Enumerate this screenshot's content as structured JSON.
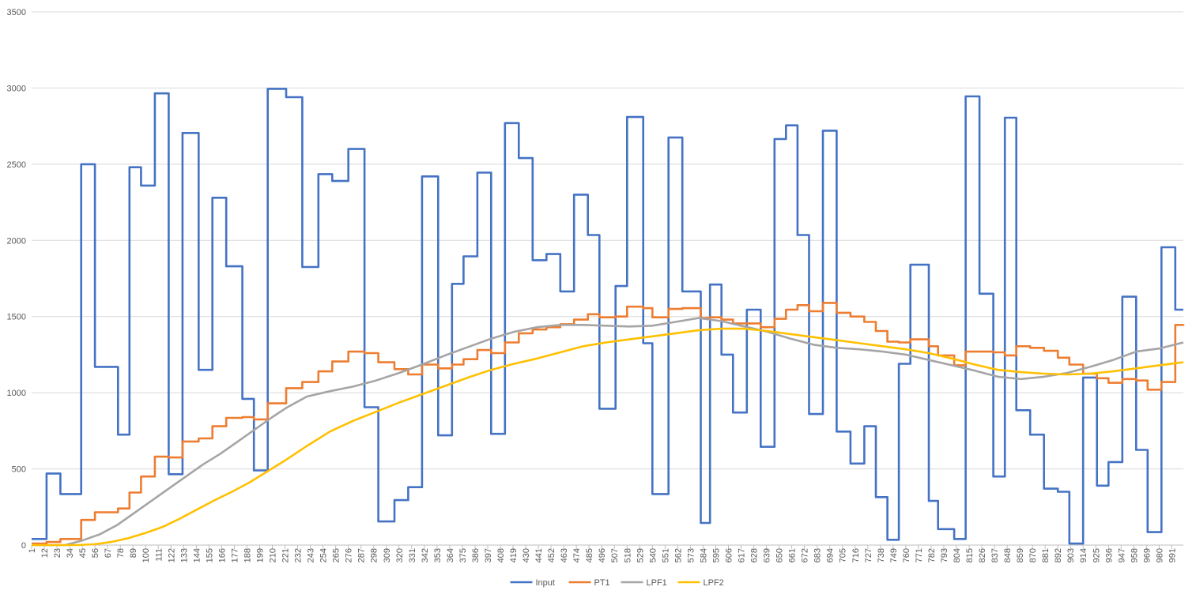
{
  "chart_data": {
    "type": "line",
    "title": "",
    "xlabel": "",
    "ylabel": "",
    "ylim": [
      0,
      3500
    ],
    "yticks": [
      0,
      500,
      1000,
      1500,
      2000,
      2500,
      3000,
      3500
    ],
    "xlim": [
      1,
      1001
    ],
    "xtick_labels": [
      "1",
      "12",
      "23",
      "34",
      "45",
      "56",
      "67",
      "78",
      "89",
      "100",
      "111",
      "122",
      "133",
      "144",
      "155",
      "166",
      "177",
      "188",
      "199",
      "210",
      "221",
      "232",
      "243",
      "254",
      "265",
      "276",
      "287",
      "298",
      "309",
      "320",
      "331",
      "342",
      "353",
      "364",
      "375",
      "386",
      "397",
      "408",
      "419",
      "430",
      "441",
      "452",
      "463",
      "474",
      "485",
      "496",
      "507",
      "518",
      "529",
      "540",
      "551",
      "562",
      "573",
      "584",
      "595",
      "606",
      "617",
      "628",
      "639",
      "650",
      "661",
      "672",
      "683",
      "694",
      "705",
      "716",
      "727",
      "738",
      "749",
      "760",
      "771",
      "782",
      "793",
      "804",
      "815",
      "826",
      "837",
      "848",
      "859",
      "870",
      "881",
      "892",
      "903",
      "914",
      "925",
      "936",
      "947",
      "958",
      "969",
      "980",
      "991"
    ],
    "grid": "horizontal",
    "legend_position": "bottom",
    "series": [
      {
        "name": "Input",
        "color": "#4472C4",
        "step": true,
        "x": [
          1,
          14,
          26,
          44,
          56,
          76,
          86,
          96,
          108,
          120,
          132,
          146,
          158,
          170,
          184,
          194,
          206,
          222,
          236,
          250,
          262,
          276,
          290,
          302,
          316,
          328,
          340,
          354,
          366,
          376,
          388,
          400,
          412,
          424,
          436,
          448,
          460,
          472,
          484,
          494,
          508,
          518,
          532,
          540,
          554,
          566,
          582,
          590,
          600,
          610,
          622,
          634,
          646,
          656,
          666,
          676,
          688,
          700,
          712,
          724,
          734,
          744,
          754,
          764,
          780,
          788,
          802,
          812,
          824,
          836,
          846,
          856,
          868,
          880,
          892,
          902,
          914,
          926,
          936,
          948,
          960,
          970,
          982,
          994,
          1001
        ],
        "values": [
          40,
          470,
          335,
          2500,
          1170,
          725,
          2480,
          2360,
          2965,
          465,
          2705,
          1150,
          2280,
          1830,
          960,
          490,
          2995,
          2940,
          1825,
          2435,
          2390,
          2600,
          905,
          155,
          295,
          380,
          2420,
          720,
          1715,
          1895,
          2445,
          730,
          2770,
          2540,
          1870,
          1910,
          1665,
          2300,
          2035,
          895,
          1700,
          2810,
          1325,
          335,
          2675,
          1665,
          145,
          1710,
          1250,
          870,
          1545,
          645,
          2665,
          2755,
          2035,
          860,
          2720,
          745,
          535,
          780,
          315,
          35,
          1190,
          1840,
          290,
          105,
          40,
          2945,
          1650,
          450,
          2805,
          885,
          725,
          370,
          350,
          10,
          1100,
          390,
          545,
          1630,
          625,
          85,
          1955,
          1545,
          1545
        ]
      },
      {
        "name": "PT1",
        "color": "#ED7D31",
        "step": true,
        "x": [
          1,
          14,
          26,
          44,
          56,
          76,
          86,
          96,
          108,
          120,
          132,
          146,
          158,
          170,
          184,
          194,
          206,
          222,
          236,
          250,
          262,
          276,
          290,
          302,
          316,
          328,
          340,
          354,
          366,
          376,
          388,
          400,
          412,
          424,
          436,
          448,
          460,
          472,
          484,
          494,
          508,
          518,
          532,
          540,
          554,
          566,
          582,
          590,
          600,
          610,
          622,
          634,
          646,
          656,
          666,
          676,
          688,
          700,
          712,
          724,
          734,
          744,
          754,
          764,
          780,
          788,
          802,
          812,
          824,
          836,
          846,
          856,
          868,
          880,
          892,
          902,
          914,
          926,
          936,
          948,
          960,
          970,
          982,
          994,
          1001
        ],
        "values": [
          10,
          20,
          40,
          165,
          215,
          240,
          345,
          450,
          580,
          575,
          680,
          700,
          780,
          835,
          840,
          825,
          930,
          1030,
          1070,
          1140,
          1205,
          1270,
          1260,
          1200,
          1155,
          1120,
          1185,
          1160,
          1185,
          1220,
          1280,
          1260,
          1330,
          1390,
          1415,
          1430,
          1450,
          1480,
          1515,
          1495,
          1500,
          1565,
          1555,
          1495,
          1550,
          1555,
          1490,
          1495,
          1480,
          1455,
          1455,
          1430,
          1485,
          1545,
          1575,
          1535,
          1590,
          1525,
          1500,
          1465,
          1405,
          1335,
          1330,
          1350,
          1305,
          1245,
          1180,
          1270,
          1270,
          1265,
          1245,
          1305,
          1295,
          1275,
          1230,
          1185,
          1125,
          1095,
          1065,
          1090,
          1080,
          1020,
          1070,
          1445,
          1450
        ]
      },
      {
        "name": "LPF1",
        "color": "#A5A5A5",
        "step": false,
        "x": [
          1,
          30,
          45,
          60,
          75,
          90,
          105,
          120,
          135,
          150,
          165,
          180,
          195,
          210,
          222,
          240,
          260,
          280,
          300,
          320,
          340,
          360,
          380,
          400,
          420,
          440,
          460,
          480,
          500,
          520,
          540,
          560,
          580,
          600,
          620,
          640,
          660,
          680,
          700,
          720,
          740,
          760,
          780,
          800,
          820,
          840,
          860,
          880,
          900,
          920,
          940,
          960,
          980,
          1001
        ],
        "values": [
          0,
          0,
          30,
          70,
          130,
          210,
          290,
          370,
          450,
          530,
          600,
          680,
          760,
          840,
          900,
          975,
          1010,
          1040,
          1080,
          1130,
          1185,
          1245,
          1300,
          1355,
          1400,
          1430,
          1445,
          1445,
          1440,
          1435,
          1440,
          1465,
          1490,
          1470,
          1435,
          1400,
          1355,
          1315,
          1295,
          1285,
          1270,
          1250,
          1215,
          1180,
          1145,
          1105,
          1090,
          1105,
          1130,
          1170,
          1215,
          1270,
          1290,
          1330
        ]
      },
      {
        "name": "LPF2",
        "color": "#FFC000",
        "step": false,
        "x": [
          1,
          40,
          55,
          70,
          85,
          100,
          115,
          130,
          145,
          160,
          175,
          190,
          205,
          220,
          240,
          260,
          280,
          300,
          320,
          340,
          360,
          380,
          400,
          420,
          440,
          460,
          480,
          500,
          520,
          540,
          560,
          580,
          600,
          620,
          640,
          660,
          680,
          700,
          720,
          740,
          760,
          780,
          800,
          820,
          840,
          860,
          880,
          900,
          920,
          940,
          960,
          980,
          1001
        ],
        "values": [
          0,
          0,
          5,
          20,
          45,
          80,
          120,
          175,
          235,
          295,
          350,
          410,
          480,
          550,
          650,
          745,
          815,
          875,
          935,
          990,
          1045,
          1100,
          1150,
          1190,
          1225,
          1265,
          1305,
          1330,
          1350,
          1370,
          1390,
          1410,
          1420,
          1420,
          1405,
          1385,
          1365,
          1345,
          1325,
          1305,
          1285,
          1260,
          1225,
          1185,
          1150,
          1135,
          1125,
          1120,
          1125,
          1140,
          1160,
          1180,
          1200
        ]
      }
    ]
  }
}
